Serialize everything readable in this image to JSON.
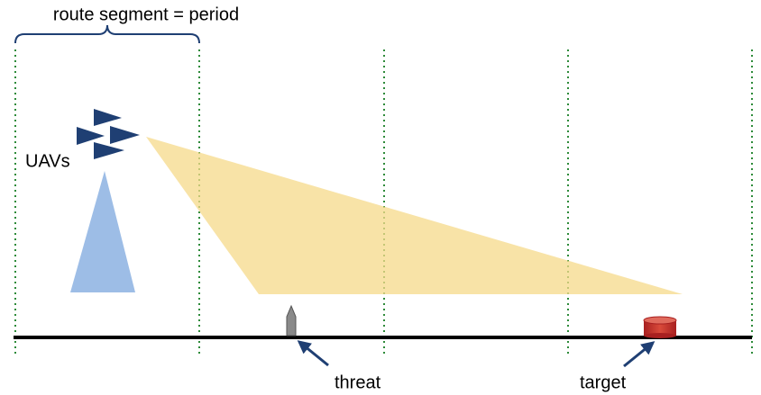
{
  "header": {
    "title": "route segment = period"
  },
  "labels": {
    "uavs": "UAVs",
    "threat": "threat",
    "target": "target"
  }
}
